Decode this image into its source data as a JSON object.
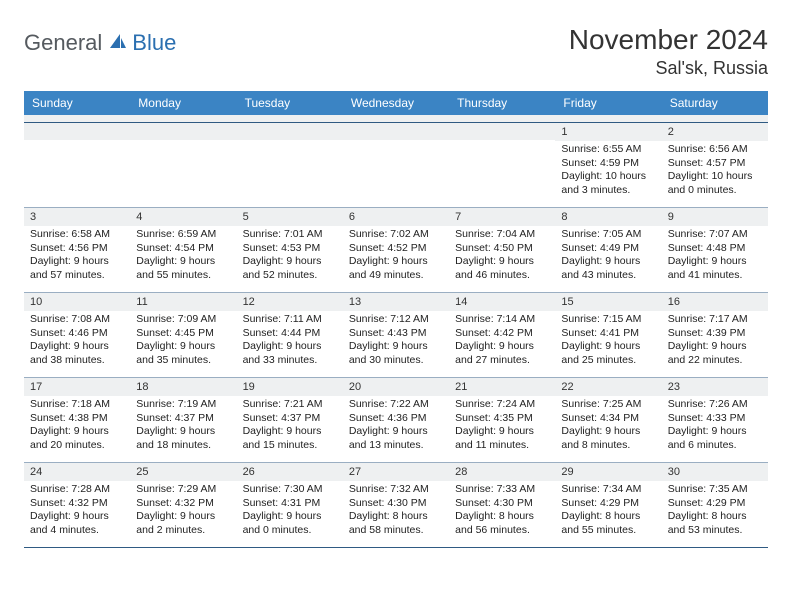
{
  "logo": {
    "part1": "General",
    "part2": "Blue"
  },
  "title": "November 2024",
  "location": "Sal'sk, Russia",
  "colors": {
    "header_bg": "#3b84c4",
    "header_text": "#ffffff",
    "daynum_bg": "#eef0f1",
    "divider": "#9aaec2",
    "strong_divider": "#2f5a82",
    "text": "#222222",
    "logo_gray": "#555a5f",
    "logo_blue": "#2b6fb0"
  },
  "daysOfWeek": [
    "Sunday",
    "Monday",
    "Tuesday",
    "Wednesday",
    "Thursday",
    "Friday",
    "Saturday"
  ],
  "weeks": [
    [
      null,
      null,
      null,
      null,
      null,
      {
        "day": "1",
        "sunrise": "Sunrise: 6:55 AM",
        "sunset": "Sunset: 4:59 PM",
        "daylight1": "Daylight: 10 hours",
        "daylight2": "and 3 minutes."
      },
      {
        "day": "2",
        "sunrise": "Sunrise: 6:56 AM",
        "sunset": "Sunset: 4:57 PM",
        "daylight1": "Daylight: 10 hours",
        "daylight2": "and 0 minutes."
      }
    ],
    [
      {
        "day": "3",
        "sunrise": "Sunrise: 6:58 AM",
        "sunset": "Sunset: 4:56 PM",
        "daylight1": "Daylight: 9 hours",
        "daylight2": "and 57 minutes."
      },
      {
        "day": "4",
        "sunrise": "Sunrise: 6:59 AM",
        "sunset": "Sunset: 4:54 PM",
        "daylight1": "Daylight: 9 hours",
        "daylight2": "and 55 minutes."
      },
      {
        "day": "5",
        "sunrise": "Sunrise: 7:01 AM",
        "sunset": "Sunset: 4:53 PM",
        "daylight1": "Daylight: 9 hours",
        "daylight2": "and 52 minutes."
      },
      {
        "day": "6",
        "sunrise": "Sunrise: 7:02 AM",
        "sunset": "Sunset: 4:52 PM",
        "daylight1": "Daylight: 9 hours",
        "daylight2": "and 49 minutes."
      },
      {
        "day": "7",
        "sunrise": "Sunrise: 7:04 AM",
        "sunset": "Sunset: 4:50 PM",
        "daylight1": "Daylight: 9 hours",
        "daylight2": "and 46 minutes."
      },
      {
        "day": "8",
        "sunrise": "Sunrise: 7:05 AM",
        "sunset": "Sunset: 4:49 PM",
        "daylight1": "Daylight: 9 hours",
        "daylight2": "and 43 minutes."
      },
      {
        "day": "9",
        "sunrise": "Sunrise: 7:07 AM",
        "sunset": "Sunset: 4:48 PM",
        "daylight1": "Daylight: 9 hours",
        "daylight2": "and 41 minutes."
      }
    ],
    [
      {
        "day": "10",
        "sunrise": "Sunrise: 7:08 AM",
        "sunset": "Sunset: 4:46 PM",
        "daylight1": "Daylight: 9 hours",
        "daylight2": "and 38 minutes."
      },
      {
        "day": "11",
        "sunrise": "Sunrise: 7:09 AM",
        "sunset": "Sunset: 4:45 PM",
        "daylight1": "Daylight: 9 hours",
        "daylight2": "and 35 minutes."
      },
      {
        "day": "12",
        "sunrise": "Sunrise: 7:11 AM",
        "sunset": "Sunset: 4:44 PM",
        "daylight1": "Daylight: 9 hours",
        "daylight2": "and 33 minutes."
      },
      {
        "day": "13",
        "sunrise": "Sunrise: 7:12 AM",
        "sunset": "Sunset: 4:43 PM",
        "daylight1": "Daylight: 9 hours",
        "daylight2": "and 30 minutes."
      },
      {
        "day": "14",
        "sunrise": "Sunrise: 7:14 AM",
        "sunset": "Sunset: 4:42 PM",
        "daylight1": "Daylight: 9 hours",
        "daylight2": "and 27 minutes."
      },
      {
        "day": "15",
        "sunrise": "Sunrise: 7:15 AM",
        "sunset": "Sunset: 4:41 PM",
        "daylight1": "Daylight: 9 hours",
        "daylight2": "and 25 minutes."
      },
      {
        "day": "16",
        "sunrise": "Sunrise: 7:17 AM",
        "sunset": "Sunset: 4:39 PM",
        "daylight1": "Daylight: 9 hours",
        "daylight2": "and 22 minutes."
      }
    ],
    [
      {
        "day": "17",
        "sunrise": "Sunrise: 7:18 AM",
        "sunset": "Sunset: 4:38 PM",
        "daylight1": "Daylight: 9 hours",
        "daylight2": "and 20 minutes."
      },
      {
        "day": "18",
        "sunrise": "Sunrise: 7:19 AM",
        "sunset": "Sunset: 4:37 PM",
        "daylight1": "Daylight: 9 hours",
        "daylight2": "and 18 minutes."
      },
      {
        "day": "19",
        "sunrise": "Sunrise: 7:21 AM",
        "sunset": "Sunset: 4:37 PM",
        "daylight1": "Daylight: 9 hours",
        "daylight2": "and 15 minutes."
      },
      {
        "day": "20",
        "sunrise": "Sunrise: 7:22 AM",
        "sunset": "Sunset: 4:36 PM",
        "daylight1": "Daylight: 9 hours",
        "daylight2": "and 13 minutes."
      },
      {
        "day": "21",
        "sunrise": "Sunrise: 7:24 AM",
        "sunset": "Sunset: 4:35 PM",
        "daylight1": "Daylight: 9 hours",
        "daylight2": "and 11 minutes."
      },
      {
        "day": "22",
        "sunrise": "Sunrise: 7:25 AM",
        "sunset": "Sunset: 4:34 PM",
        "daylight1": "Daylight: 9 hours",
        "daylight2": "and 8 minutes."
      },
      {
        "day": "23",
        "sunrise": "Sunrise: 7:26 AM",
        "sunset": "Sunset: 4:33 PM",
        "daylight1": "Daylight: 9 hours",
        "daylight2": "and 6 minutes."
      }
    ],
    [
      {
        "day": "24",
        "sunrise": "Sunrise: 7:28 AM",
        "sunset": "Sunset: 4:32 PM",
        "daylight1": "Daylight: 9 hours",
        "daylight2": "and 4 minutes."
      },
      {
        "day": "25",
        "sunrise": "Sunrise: 7:29 AM",
        "sunset": "Sunset: 4:32 PM",
        "daylight1": "Daylight: 9 hours",
        "daylight2": "and 2 minutes."
      },
      {
        "day": "26",
        "sunrise": "Sunrise: 7:30 AM",
        "sunset": "Sunset: 4:31 PM",
        "daylight1": "Daylight: 9 hours",
        "daylight2": "and 0 minutes."
      },
      {
        "day": "27",
        "sunrise": "Sunrise: 7:32 AM",
        "sunset": "Sunset: 4:30 PM",
        "daylight1": "Daylight: 8 hours",
        "daylight2": "and 58 minutes."
      },
      {
        "day": "28",
        "sunrise": "Sunrise: 7:33 AM",
        "sunset": "Sunset: 4:30 PM",
        "daylight1": "Daylight: 8 hours",
        "daylight2": "and 56 minutes."
      },
      {
        "day": "29",
        "sunrise": "Sunrise: 7:34 AM",
        "sunset": "Sunset: 4:29 PM",
        "daylight1": "Daylight: 8 hours",
        "daylight2": "and 55 minutes."
      },
      {
        "day": "30",
        "sunrise": "Sunrise: 7:35 AM",
        "sunset": "Sunset: 4:29 PM",
        "daylight1": "Daylight: 8 hours",
        "daylight2": "and 53 minutes."
      }
    ]
  ]
}
